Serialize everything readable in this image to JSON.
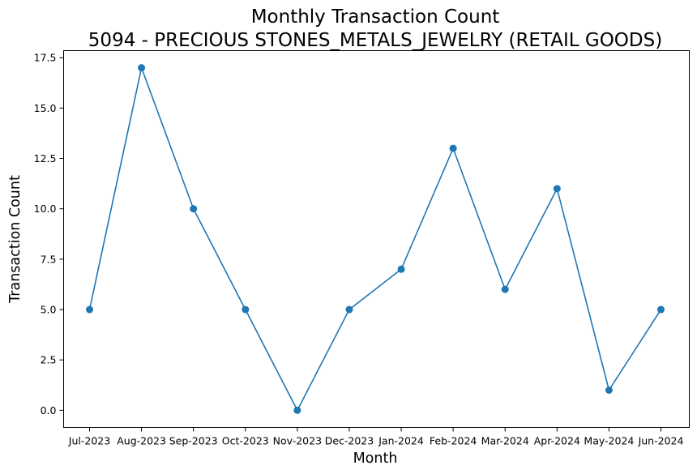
{
  "chart_data": {
    "type": "line",
    "title": "Monthly Transaction Count",
    "subtitle": "5094 - PRECIOUS STONES_METALS_JEWELRY (RETAIL GOODS)",
    "xlabel": "Month",
    "ylabel": "Transaction Count",
    "categories": [
      "Jul-2023",
      "Aug-2023",
      "Sep-2023",
      "Oct-2023",
      "Nov-2023",
      "Dec-2023",
      "Jan-2024",
      "Feb-2024",
      "Mar-2024",
      "Apr-2024",
      "May-2024",
      "Jun-2024"
    ],
    "series": [
      {
        "values": [
          5,
          17,
          10,
          5,
          0,
          5,
          7,
          13,
          6,
          11,
          1,
          5
        ],
        "color": "#1f77b4",
        "marker": "circle"
      }
    ],
    "yticks": [
      0.0,
      2.5,
      5.0,
      7.5,
      10.0,
      12.5,
      15.0,
      17.5
    ],
    "ytick_labels": [
      "0.0",
      "2.5",
      "5.0",
      "7.5",
      "10.0",
      "12.5",
      "15.0",
      "17.5"
    ],
    "ylim": [
      -0.85,
      17.85
    ],
    "grid": false,
    "legend": "none"
  }
}
